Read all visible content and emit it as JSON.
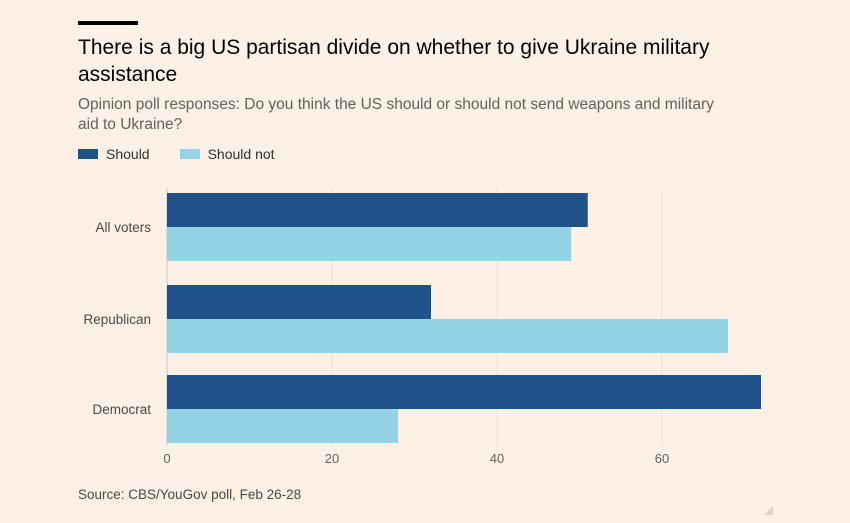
{
  "colors": {
    "should": "#1f5289",
    "should_not": "#94d2e6",
    "background": "#fdf0e6",
    "grid": "#e9ded5",
    "text": "#66605c"
  },
  "chart_data": {
    "type": "bar",
    "orientation": "horizontal",
    "title": "There is a big US partisan divide on whether to give Ukraine military assistance",
    "subtitle": "Opinion poll responses: Do you think the US should or should not send weapons and military aid to Ukraine?",
    "categories": [
      "All voters",
      "Republican",
      "Democrat"
    ],
    "series": [
      {
        "name": "Should",
        "values": [
          51,
          32,
          72
        ]
      },
      {
        "name": "Should not",
        "values": [
          49,
          68,
          28
        ]
      }
    ],
    "xlim": [
      0,
      75
    ],
    "xticks": [
      0,
      20,
      40,
      60
    ],
    "grid": true,
    "legend_position": "top-left",
    "source": "Source: CBS/YouGov poll, Feb 26-28"
  }
}
